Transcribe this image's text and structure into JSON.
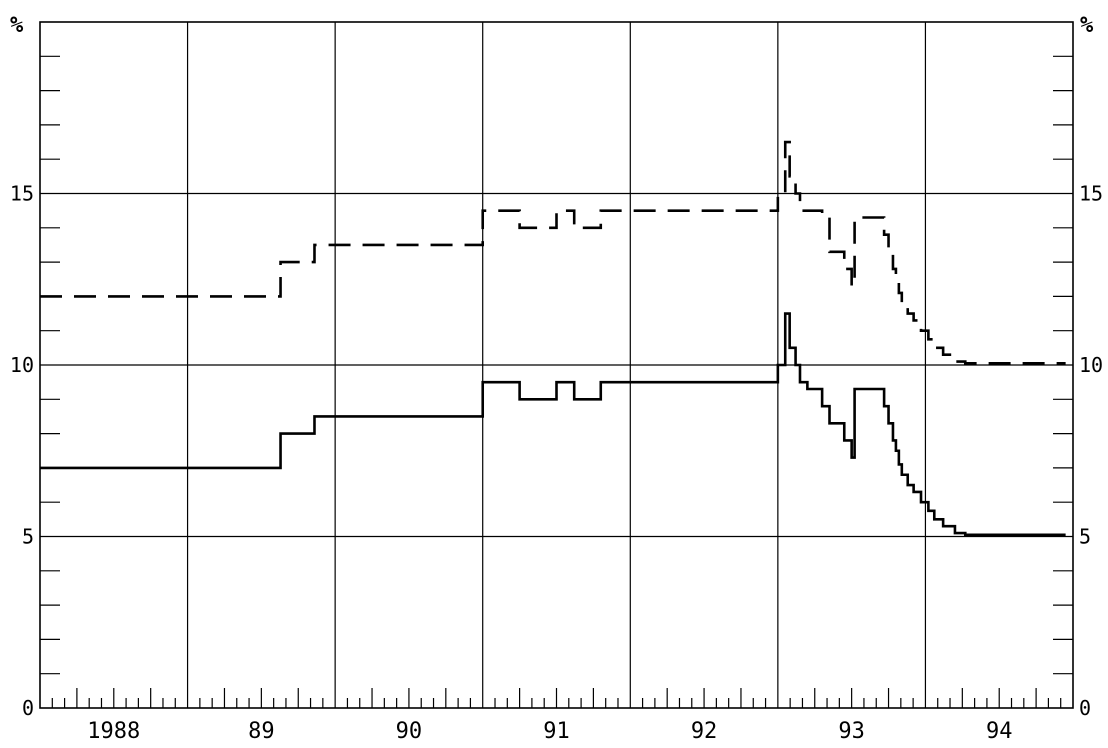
{
  "chart_data": {
    "type": "line",
    "title": "",
    "xlabel": "",
    "ylabel": "",
    "y_unit_left": "%",
    "y_unit_right": "%",
    "ylim": [
      0,
      20
    ],
    "y_ticks": [
      "0",
      "5",
      "10",
      "15"
    ],
    "y_gridlines": [
      5,
      10,
      15
    ],
    "xlim": [
      1988.0,
      1995.0
    ],
    "x_tick_labels": [
      {
        "label": "1988",
        "x": 1988.5
      },
      {
        "label": "89",
        "x": 1989.5
      },
      {
        "label": "90",
        "x": 1990.5
      },
      {
        "label": "91",
        "x": 1991.5
      },
      {
        "label": "92",
        "x": 1992.5
      },
      {
        "label": "93",
        "x": 1993.5
      },
      {
        "label": "94",
        "x": 1994.5
      }
    ],
    "x_gridlines": [
      1989,
      1990,
      1991,
      1992,
      1993,
      1994
    ],
    "minor_ticks_per_year": 12,
    "grid": true,
    "legend": "none",
    "series": [
      {
        "style": "dashed",
        "color": "#000000",
        "shape": "step-after",
        "x": [
          1988.0,
          1989.63,
          1989.86,
          1991.0,
          1991.25,
          1991.5,
          1991.62,
          1991.8,
          1992.0,
          1993.0,
          1993.05,
          1993.08,
          1993.12,
          1993.15,
          1993.2,
          1993.3,
          1993.35,
          1993.45,
          1993.5,
          1993.52,
          1993.58,
          1993.72,
          1993.75,
          1993.78,
          1993.8,
          1993.82,
          1993.84,
          1993.88,
          1993.92,
          1993.97,
          1994.02,
          1994.06,
          1994.12,
          1994.2,
          1994.27,
          1994.35,
          1994.95
        ],
        "y": [
          12.0,
          13.0,
          13.5,
          14.5,
          14.0,
          14.5,
          14.0,
          14.5,
          14.5,
          15.0,
          16.5,
          15.5,
          15.0,
          14.5,
          14.5,
          14.3,
          13.3,
          12.8,
          12.3,
          14.3,
          14.3,
          13.8,
          13.3,
          12.8,
          12.5,
          12.1,
          11.8,
          11.5,
          11.3,
          11.0,
          10.75,
          10.5,
          10.3,
          10.1,
          10.05,
          10.05,
          10.05
        ]
      },
      {
        "style": "solid",
        "color": "#000000",
        "shape": "step-after",
        "x": [
          1988.0,
          1989.63,
          1989.86,
          1991.0,
          1991.25,
          1991.5,
          1991.62,
          1991.8,
          1992.0,
          1993.0,
          1993.05,
          1993.08,
          1993.12,
          1993.15,
          1993.2,
          1993.3,
          1993.35,
          1993.45,
          1993.5,
          1993.52,
          1993.58,
          1993.72,
          1993.75,
          1993.78,
          1993.8,
          1993.82,
          1993.84,
          1993.88,
          1993.92,
          1993.97,
          1994.02,
          1994.06,
          1994.12,
          1994.2,
          1994.27,
          1994.35,
          1994.95
        ],
        "y": [
          7.0,
          8.0,
          8.5,
          9.5,
          9.0,
          9.5,
          9.0,
          9.5,
          9.5,
          10.0,
          11.5,
          10.5,
          10.0,
          9.5,
          9.3,
          8.8,
          8.3,
          7.8,
          7.3,
          9.3,
          9.3,
          8.8,
          8.3,
          7.8,
          7.5,
          7.1,
          6.8,
          6.5,
          6.3,
          6.0,
          5.75,
          5.5,
          5.3,
          5.1,
          5.05,
          5.05,
          5.05
        ]
      }
    ]
  }
}
